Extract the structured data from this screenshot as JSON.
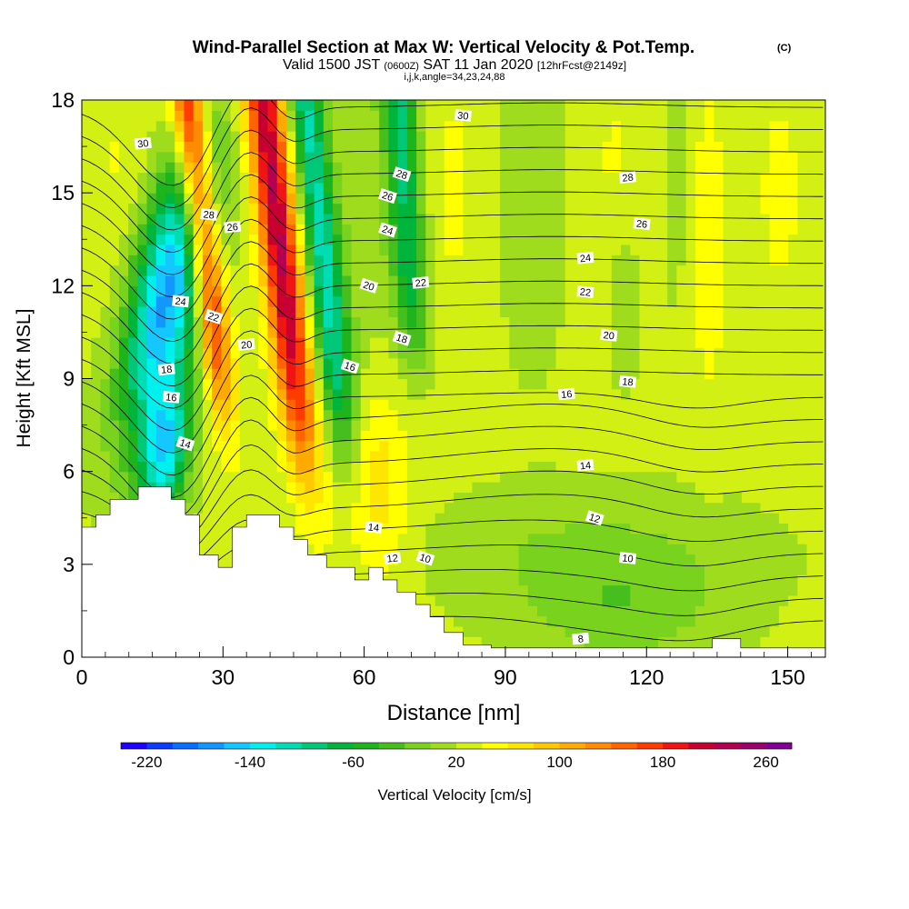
{
  "chart_data": {
    "type": "heatmap",
    "title": "Wind-Parallel Section at Max W: Vertical Velocity & Pot.Temp.",
    "title_tag": "(C)",
    "subtitle_a": "Valid 1500 JST ",
    "subtitle_b": "(0600Z)",
    "subtitle_c": " SAT 11 Jan 2020 ",
    "subtitle_d": "[12hrFcst@2149z]",
    "subtitle2": "i,j,k,angle=34,23,24,88",
    "xlabel": "Distance [nm]",
    "ylabel": "Height [Kft MSL]",
    "xlim": [
      0,
      158
    ],
    "ylim": [
      0,
      18
    ],
    "x_ticks": [
      0,
      30,
      60,
      90,
      120,
      150
    ],
    "y_ticks": [
      0,
      3,
      6,
      9,
      12,
      15,
      18
    ],
    "colorbar_label": "Vertical Velocity [cm/s]",
    "colorbar_ticks": [
      -220,
      -140,
      -60,
      20,
      100,
      180,
      260
    ],
    "colorbar_range": [
      -240,
      280
    ],
    "colorbar_colors": [
      "#1e00ff",
      "#0a3cff",
      "#0a6eff",
      "#1496ff",
      "#14c8ff",
      "#00f0f0",
      "#00dcb4",
      "#00c878",
      "#00b43c",
      "#1eb41e",
      "#46be1e",
      "#78d21e",
      "#a0dc1e",
      "#d2f014",
      "#ffff00",
      "#ffe600",
      "#ffc800",
      "#ffaa00",
      "#ff8c00",
      "#ff6400",
      "#ff3c00",
      "#f01414",
      "#c80032",
      "#b40050",
      "#9b006e",
      "#820096"
    ],
    "terrain_kft": [
      [
        0,
        4.2
      ],
      [
        3,
        4.2
      ],
      [
        3,
        4.6
      ],
      [
        6,
        4.6
      ],
      [
        6,
        5.1
      ],
      [
        12,
        5.1
      ],
      [
        12,
        5.5
      ],
      [
        19,
        5.5
      ],
      [
        19,
        5.1
      ],
      [
        22,
        5.1
      ],
      [
        22,
        4.6
      ],
      [
        25,
        4.6
      ],
      [
        25,
        3.3
      ],
      [
        29,
        3.3
      ],
      [
        29,
        2.9
      ],
      [
        32,
        2.9
      ],
      [
        32,
        4.2
      ],
      [
        35,
        4.2
      ],
      [
        35,
        4.6
      ],
      [
        42,
        4.6
      ],
      [
        42,
        4.2
      ],
      [
        45,
        4.2
      ],
      [
        45,
        3.8
      ],
      [
        48,
        3.8
      ],
      [
        48,
        3.3
      ],
      [
        52,
        3.3
      ],
      [
        52,
        2.9
      ],
      [
        58,
        2.9
      ],
      [
        58,
        2.5
      ],
      [
        61,
        2.5
      ],
      [
        61,
        2.9
      ],
      [
        64,
        2.9
      ],
      [
        64,
        2.5
      ],
      [
        67,
        2.5
      ],
      [
        67,
        2.1
      ],
      [
        71,
        2.1
      ],
      [
        71,
        1.7
      ],
      [
        74,
        1.7
      ],
      [
        74,
        1.3
      ],
      [
        77,
        1.3
      ],
      [
        77,
        0.8
      ],
      [
        81,
        0.8
      ],
      [
        81,
        0.4
      ],
      [
        87,
        0.4
      ],
      [
        87,
        0.3
      ],
      [
        134,
        0.3
      ],
      [
        134,
        0.6
      ],
      [
        140,
        0.6
      ],
      [
        140,
        0.3
      ],
      [
        158,
        0.3
      ]
    ],
    "theta_labels": [
      {
        "text": "30",
        "x": 13,
        "y": 16.6
      },
      {
        "text": "30",
        "x": 81,
        "y": 17.5
      },
      {
        "text": "28",
        "x": 68,
        "y": 15.6
      },
      {
        "text": "28",
        "x": 116,
        "y": 15.5
      },
      {
        "text": "28",
        "x": 27,
        "y": 14.3
      },
      {
        "text": "26",
        "x": 65,
        "y": 14.9
      },
      {
        "text": "26",
        "x": 32,
        "y": 13.9
      },
      {
        "text": "26",
        "x": 119,
        "y": 14.0
      },
      {
        "text": "24",
        "x": 65,
        "y": 13.8
      },
      {
        "text": "24",
        "x": 107,
        "y": 12.9
      },
      {
        "text": "24",
        "x": 21,
        "y": 11.5
      },
      {
        "text": "22",
        "x": 28,
        "y": 11.0
      },
      {
        "text": "22",
        "x": 72,
        "y": 12.1
      },
      {
        "text": "22",
        "x": 107,
        "y": 11.8
      },
      {
        "text": "20",
        "x": 61,
        "y": 12.0
      },
      {
        "text": "20",
        "x": 35,
        "y": 10.1
      },
      {
        "text": "20",
        "x": 112,
        "y": 10.4
      },
      {
        "text": "18",
        "x": 68,
        "y": 10.3
      },
      {
        "text": "18",
        "x": 18,
        "y": 9.3
      },
      {
        "text": "18",
        "x": 116,
        "y": 8.9
      },
      {
        "text": "16",
        "x": 57,
        "y": 9.4
      },
      {
        "text": "16",
        "x": 103,
        "y": 8.5
      },
      {
        "text": "16",
        "x": 19,
        "y": 8.4
      },
      {
        "text": "14",
        "x": 22,
        "y": 6.9
      },
      {
        "text": "14",
        "x": 107,
        "y": 6.2
      },
      {
        "text": "14",
        "x": 62,
        "y": 4.2
      },
      {
        "text": "12",
        "x": 109,
        "y": 4.5
      },
      {
        "text": "12",
        "x": 66,
        "y": 3.2
      },
      {
        "text": "10",
        "x": 116,
        "y": 3.2
      },
      {
        "text": "10",
        "x": 73,
        "y": 3.2
      },
      {
        "text": "8",
        "x": 106,
        "y": 0.6
      }
    ]
  }
}
